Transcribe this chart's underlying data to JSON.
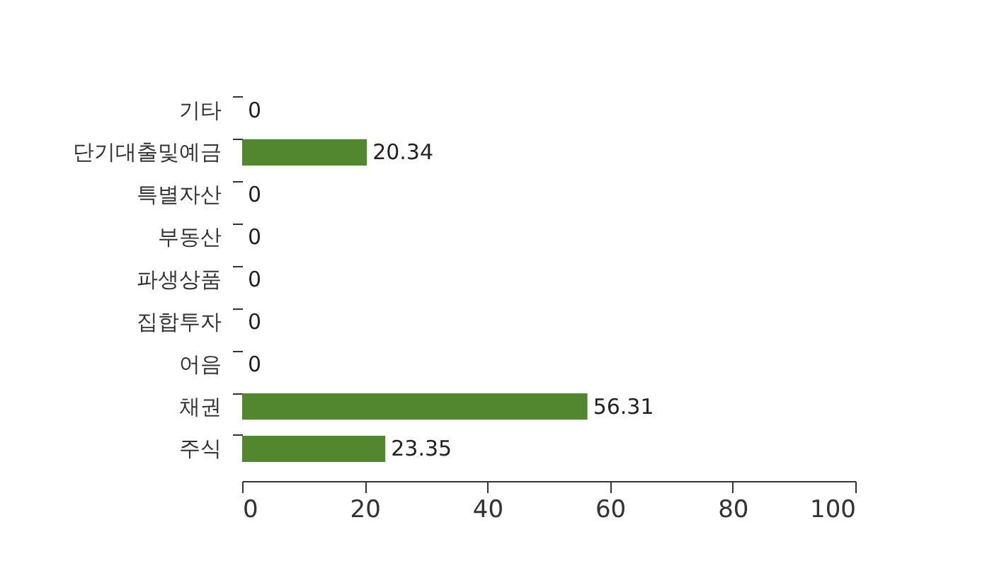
{
  "chart_data": {
    "type": "bar",
    "orientation": "horizontal",
    "categories": [
      "기타",
      "단기대출및예금",
      "특별자산",
      "부동산",
      "파생상품",
      "집합투자",
      "어음",
      "채권",
      "주식"
    ],
    "values": [
      0,
      20.34,
      0,
      0,
      0,
      0,
      0,
      56.31,
      23.35
    ],
    "color": "#53872f",
    "xlim": [
      0,
      100
    ],
    "xticks": [
      0,
      20,
      40,
      60,
      80,
      100
    ],
    "grid": false,
    "data_labels": true
  }
}
